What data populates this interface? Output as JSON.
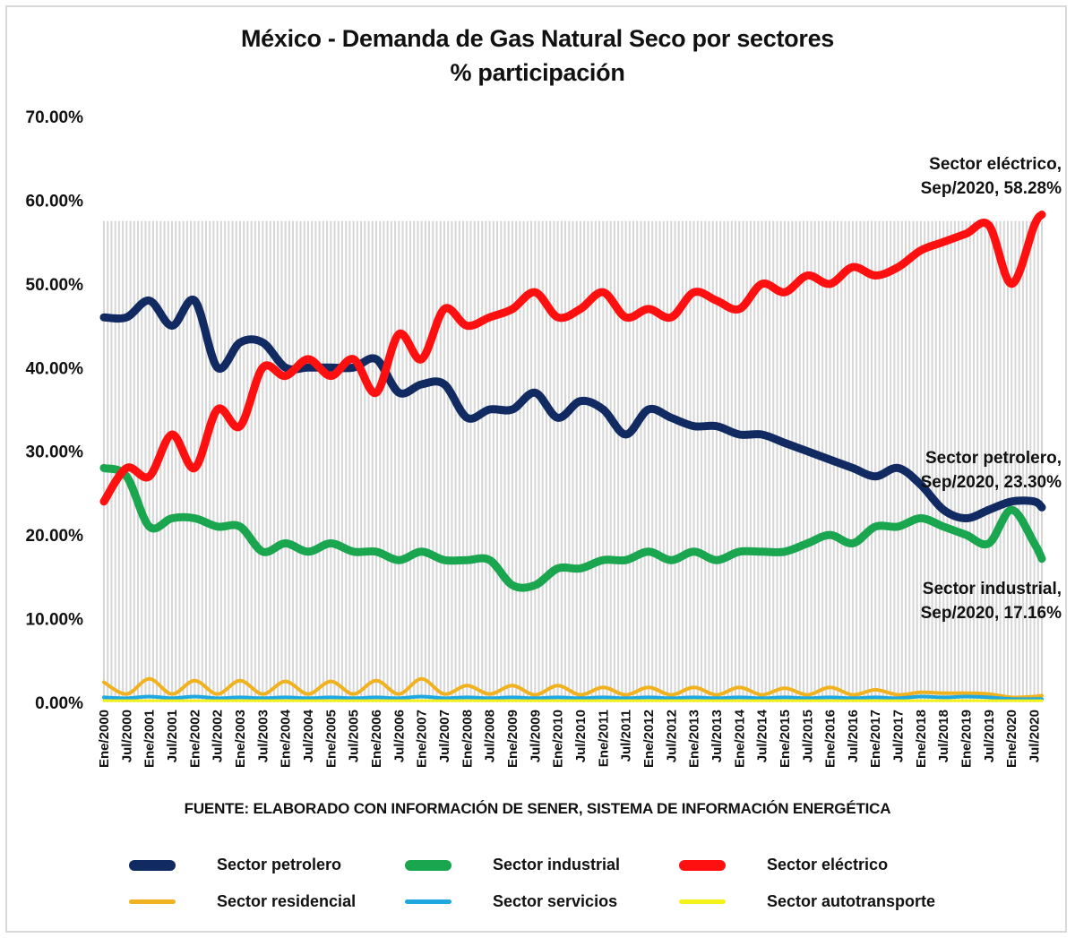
{
  "chart_data": {
    "type": "line",
    "title": "México - Demanda de Gas Natural Seco por sectores",
    "subtitle": "% participación",
    "xlabel": "",
    "ylabel": "",
    "ylim": [
      0,
      70
    ],
    "yticks": [
      0,
      10,
      20,
      30,
      40,
      50,
      60,
      70
    ],
    "ytick_labels": [
      "0.00%",
      "10.00%",
      "20.00%",
      "30.00%",
      "40.00%",
      "50.00%",
      "60.00%",
      "70.00%"
    ],
    "x": [
      "Ene/2000",
      "Jul/2000",
      "Ene/2001",
      "Jul/2001",
      "Ene/2002",
      "Jul/2002",
      "Ene/2003",
      "Jul/2003",
      "Ene/2004",
      "Jul/2004",
      "Ene/2005",
      "Jul/2005",
      "Ene/2006",
      "Jul/2006",
      "Ene/2007",
      "Jul/2007",
      "Ene/2008",
      "Jul/2008",
      "Ene/2009",
      "Jul/2009",
      "Ene/2010",
      "Jul/2010",
      "Ene/2011",
      "Jul/2011",
      "Ene/2012",
      "Jul/2012",
      "Ene/2013",
      "Jul/2013",
      "Ene/2014",
      "Jul/2014",
      "Ene/2015",
      "Jul/2015",
      "Ene/2016",
      "Jul/2016",
      "Ene/2017",
      "Jul/2017",
      "Ene/2018",
      "Jul/2018",
      "Ene/2019",
      "Jul/2019",
      "Ene/2020",
      "Jul/2020",
      "Sep/2020"
    ],
    "xtick_labels": [
      "Ene/2000",
      "Jul/2000",
      "Ene/2001",
      "Jul/2001",
      "Ene/2002",
      "Jul/2002",
      "Ene/2003",
      "Jul/2003",
      "Ene/2004",
      "Jul/2004",
      "Ene/2005",
      "Jul/2005",
      "Ene/2006",
      "Jul/2006",
      "Ene/2007",
      "Jul/2007",
      "Ene/2008",
      "Jul/2008",
      "Ene/2009",
      "Jul/2009",
      "Ene/2010",
      "Jul/2010",
      "Ene/2011",
      "Jul/2011",
      "Ene/2012",
      "Jul/2012",
      "Ene/2013",
      "Jul/2013",
      "Ene/2014",
      "Jul/2014",
      "Ene/2015",
      "Jul/2015",
      "Ene/2016",
      "Jul/2016",
      "Ene/2017",
      "Jul/2017",
      "Ene/2018",
      "Jul/2018",
      "Ene/2019",
      "Jul/2019",
      "Ene/2020",
      "Jul/2020"
    ],
    "grid": false,
    "legend_position": "bottom",
    "series": [
      {
        "name": "Sector petrolero",
        "color": "#112a62",
        "values": [
          46,
          46,
          48,
          45,
          48,
          40,
          43,
          43,
          40,
          40,
          40,
          40,
          41,
          37,
          38,
          38,
          34,
          35,
          35,
          37,
          34,
          36,
          35,
          32,
          35,
          34,
          33,
          33,
          32,
          32,
          31,
          30,
          29,
          28,
          27,
          28,
          26,
          23,
          22,
          23,
          24,
          24,
          23.3
        ]
      },
      {
        "name": "Sector industrial",
        "color": "#1aa64f",
        "values": [
          28,
          27,
          21,
          22,
          22,
          21,
          21,
          18,
          19,
          18,
          19,
          18,
          18,
          17,
          18,
          17,
          17,
          17,
          14,
          14,
          16,
          16,
          17,
          17,
          18,
          17,
          18,
          17,
          18,
          18,
          18,
          19,
          20,
          19,
          21,
          21,
          22,
          21,
          20,
          19,
          23,
          19,
          17.16
        ]
      },
      {
        "name": "Sector eléctrico",
        "color": "#ff1010",
        "values": [
          24,
          28,
          27,
          32,
          28,
          35,
          33,
          40,
          39,
          41,
          39,
          41,
          37,
          44,
          41,
          47,
          45,
          46,
          47,
          49,
          46,
          47,
          49,
          46,
          47,
          46,
          49,
          48,
          47,
          50,
          49,
          51,
          50,
          52,
          51,
          52,
          54,
          55,
          56,
          57,
          50,
          57,
          58.28
        ]
      },
      {
        "name": "Sector residencial",
        "color": "#f0b31f",
        "values": [
          2.4,
          1.0,
          2.8,
          1.0,
          2.6,
          1.0,
          2.6,
          1.0,
          2.5,
          1.0,
          2.5,
          1.0,
          2.6,
          1.0,
          2.8,
          1.0,
          2.0,
          1.0,
          2.0,
          0.9,
          2.0,
          0.9,
          1.8,
          0.9,
          1.8,
          0.9,
          1.8,
          0.9,
          1.8,
          0.9,
          1.7,
          0.9,
          1.8,
          0.9,
          1.5,
          0.9,
          1.2,
          1.1,
          1.1,
          1.0,
          0.6,
          0.7,
          0.8
        ]
      },
      {
        "name": "Sector servicios",
        "color": "#1fa8e0",
        "values": [
          0.6,
          0.5,
          0.7,
          0.5,
          0.7,
          0.5,
          0.6,
          0.5,
          0.6,
          0.5,
          0.6,
          0.5,
          0.6,
          0.5,
          0.7,
          0.5,
          0.6,
          0.5,
          0.6,
          0.5,
          0.6,
          0.5,
          0.6,
          0.5,
          0.6,
          0.5,
          0.6,
          0.5,
          0.6,
          0.5,
          0.6,
          0.5,
          0.6,
          0.5,
          0.6,
          0.5,
          0.7,
          0.6,
          0.7,
          0.6,
          0.4,
          0.4,
          0.4
        ]
      },
      {
        "name": "Sector autotransporte",
        "color": "#f5f21a",
        "values": [
          0.2,
          0.2,
          0.2,
          0.2,
          0.2,
          0.2,
          0.2,
          0.2,
          0.2,
          0.2,
          0.2,
          0.2,
          0.2,
          0.2,
          0.2,
          0.2,
          0.2,
          0.2,
          0.2,
          0.2,
          0.2,
          0.2,
          0.2,
          0.2,
          0.2,
          0.2,
          0.2,
          0.2,
          0.2,
          0.2,
          0.2,
          0.2,
          0.2,
          0.2,
          0.2,
          0.2,
          0.2,
          0.2,
          0.2,
          0.2,
          0.2,
          0.2,
          0.2
        ]
      }
    ],
    "annotations": [
      {
        "series": "Sector eléctrico",
        "line1": "Sector eléctrico,",
        "line2": "Sep/2020, 58.28%"
      },
      {
        "series": "Sector petrolero",
        "line1": "Sector petrolero,",
        "line2": "Sep/2020, 23.30%"
      },
      {
        "series": "Sector industrial",
        "line1": "Sector industrial,",
        "line2": "Sep/2020, 17.16%"
      }
    ],
    "source": "FUENTE: ELABORADO CON INFORMACIÓN DE SENER, SISTEMA DE INFORMACIÓN ENERGÉTICA"
  },
  "header": {
    "title": "México - Demanda de Gas Natural Seco por sectores",
    "subtitle": "% participación"
  },
  "footer": {
    "source": "FUENTE: ELABORADO CON INFORMACIÓN DE SENER, SISTEMA DE INFORMACIÓN ENERGÉTICA"
  },
  "legend": [
    {
      "label": "Sector petrolero",
      "color": "#112a62"
    },
    {
      "label": "Sector industrial",
      "color": "#1aa64f"
    },
    {
      "label": "Sector eléctrico",
      "color": "#ff1010"
    },
    {
      "label": "Sector residencial",
      "color": "#f0b31f"
    },
    {
      "label": "Sector servicios",
      "color": "#1fa8e0"
    },
    {
      "label": "Sector autotransporte",
      "color": "#f5f21a"
    }
  ]
}
